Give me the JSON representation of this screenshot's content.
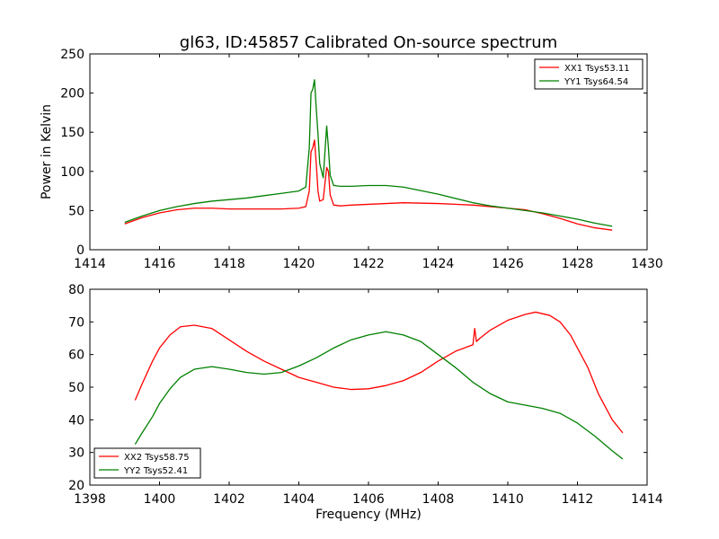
{
  "figure": {
    "title": "gl63, ID:45857 Calibrated On-source spectrum",
    "shared_xlabel": "Frequency (MHz)"
  },
  "colors": {
    "red": "#ff0000",
    "green": "#008000"
  },
  "chart_data": [
    {
      "type": "line",
      "title": "gl63, ID:45857 Calibrated On-source spectrum",
      "xlabel": "",
      "ylabel": "Power in Kelvin",
      "xlim": [
        1414,
        1430
      ],
      "ylim": [
        0,
        250
      ],
      "xticks": [
        1414,
        1416,
        1418,
        1420,
        1422,
        1424,
        1426,
        1428,
        1430
      ],
      "yticks": [
        0,
        50,
        100,
        150,
        200,
        250
      ],
      "grid": false,
      "legend": "top-right",
      "series": [
        {
          "name": "XX1 Tsys53.11",
          "color": "#ff0000",
          "x": [
            1415.0,
            1415.5,
            1416.0,
            1416.5,
            1417.0,
            1417.5,
            1418.0,
            1418.5,
            1419.0,
            1419.5,
            1420.0,
            1420.2,
            1420.3,
            1420.35,
            1420.4,
            1420.45,
            1420.5,
            1420.55,
            1420.6,
            1420.7,
            1420.8,
            1420.85,
            1420.9,
            1421.0,
            1421.2,
            1421.5,
            1422.0,
            1423.0,
            1424.0,
            1425.0,
            1426.0,
            1426.5,
            1427.0,
            1427.5,
            1428.0,
            1428.5,
            1429.0
          ],
          "values": [
            33,
            41,
            47,
            51,
            53,
            53,
            52,
            52,
            52,
            52,
            53,
            55,
            75,
            125,
            130,
            140,
            110,
            75,
            62,
            64,
            105,
            100,
            70,
            57,
            56,
            57,
            58,
            60,
            59,
            57,
            53,
            51,
            46,
            40,
            33,
            28,
            25
          ]
        },
        {
          "name": "YY1 Tsys64.54",
          "color": "#008000",
          "x": [
            1415.0,
            1415.5,
            1416.0,
            1416.5,
            1417.0,
            1417.5,
            1418.0,
            1418.5,
            1419.0,
            1419.5,
            1420.0,
            1420.2,
            1420.3,
            1420.35,
            1420.4,
            1420.45,
            1420.5,
            1420.55,
            1420.6,
            1420.7,
            1420.8,
            1420.85,
            1420.9,
            1421.0,
            1421.2,
            1421.5,
            1422.0,
            1422.5,
            1423.0,
            1424.0,
            1425.0,
            1425.5,
            1426.0,
            1426.5,
            1427.0,
            1427.5,
            1428.0,
            1428.5,
            1429.0
          ],
          "values": [
            35,
            43,
            50,
            55,
            59,
            62,
            64,
            66,
            69,
            72,
            75,
            80,
            130,
            200,
            205,
            217,
            180,
            148,
            110,
            92,
            158,
            130,
            95,
            82,
            81,
            81,
            82,
            82,
            80,
            71,
            60,
            56,
            53,
            50,
            47,
            43,
            39,
            34,
            30
          ]
        }
      ]
    },
    {
      "type": "line",
      "title": "",
      "xlabel": "Frequency (MHz)",
      "ylabel": "",
      "xlim": [
        1398,
        1414
      ],
      "ylim": [
        20,
        80
      ],
      "xticks": [
        1398,
        1400,
        1402,
        1404,
        1406,
        1408,
        1410,
        1412,
        1414
      ],
      "yticks": [
        20,
        30,
        40,
        50,
        60,
        70,
        80
      ],
      "grid": false,
      "legend": "bottom-left",
      "series": [
        {
          "name": "XX2 Tsys58.75",
          "color": "#ff0000",
          "x": [
            1399.3,
            1399.5,
            1399.8,
            1400.0,
            1400.3,
            1400.6,
            1401.0,
            1401.5,
            1402.0,
            1402.5,
            1403.0,
            1403.5,
            1404.0,
            1404.5,
            1405.0,
            1405.5,
            1406.0,
            1406.5,
            1407.0,
            1407.5,
            1408.0,
            1408.5,
            1409.0,
            1409.05,
            1409.1,
            1409.2,
            1409.5,
            1410.0,
            1410.5,
            1410.8,
            1411.2,
            1411.5,
            1411.8,
            1412.0,
            1412.3,
            1412.6,
            1413.0,
            1413.3
          ],
          "values": [
            46,
            51,
            58,
            62,
            66,
            68.5,
            69,
            68,
            64.5,
            61,
            58,
            55.5,
            53,
            51.5,
            50,
            49.3,
            49.5,
            50.5,
            52,
            54.5,
            58,
            61,
            63,
            68,
            64,
            65,
            67.5,
            70.5,
            72.3,
            73,
            72,
            70,
            66,
            62,
            56,
            48,
            40,
            36
          ]
        },
        {
          "name": "YY2 Tsys52.41",
          "color": "#008000",
          "x": [
            1399.3,
            1399.5,
            1399.8,
            1400.0,
            1400.3,
            1400.6,
            1401.0,
            1401.5,
            1402.0,
            1402.5,
            1403.0,
            1403.5,
            1404.0,
            1404.5,
            1405.0,
            1405.5,
            1406.0,
            1406.5,
            1407.0,
            1407.5,
            1408.0,
            1408.5,
            1409.0,
            1409.5,
            1410.0,
            1410.5,
            1411.0,
            1411.5,
            1412.0,
            1412.5,
            1413.0,
            1413.3
          ],
          "values": [
            32.5,
            36,
            41,
            45,
            49.5,
            53,
            55.5,
            56.3,
            55.5,
            54.5,
            54,
            54.5,
            56.5,
            59,
            62,
            64.5,
            66,
            67,
            66,
            64,
            60,
            56,
            51.5,
            48,
            45.5,
            44.5,
            43.5,
            42,
            39,
            35,
            30.5,
            28
          ]
        }
      ]
    }
  ]
}
